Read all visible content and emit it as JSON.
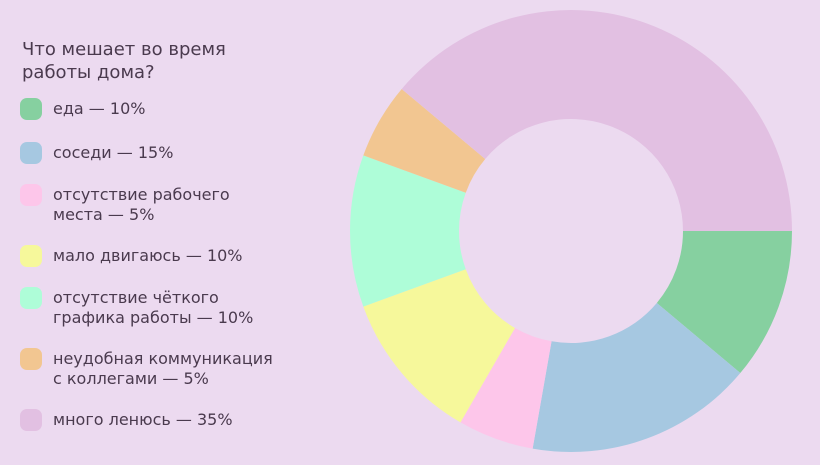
{
  "chart_data": {
    "type": "pie",
    "donut": true,
    "title": "Что мешает во время\nработы дома?",
    "legend_position": "left",
    "slices": [
      {
        "label": "еда — 10%",
        "value": 10,
        "color": "#86d0a0"
      },
      {
        "label": "соседи — 15%",
        "value": 15,
        "color": "#a6c8e1"
      },
      {
        "label": "отсутствие рабочего\nместа — 5%",
        "value": 5,
        "color": "#fdc6ea"
      },
      {
        "label": "мало двигаюсь — 10%",
        "value": 10,
        "color": "#f6f89b"
      },
      {
        "label": "отсутствие чёткого\nграфика работы — 10%",
        "value": 10,
        "color": "#aefdd8"
      },
      {
        "label": "неудобная коммуникация\nс коллегами — 5%",
        "value": 5,
        "color": "#f2c691"
      },
      {
        "label": "много ленюсь — 35%",
        "value": 35,
        "color": "#e2c0e2"
      }
    ]
  }
}
